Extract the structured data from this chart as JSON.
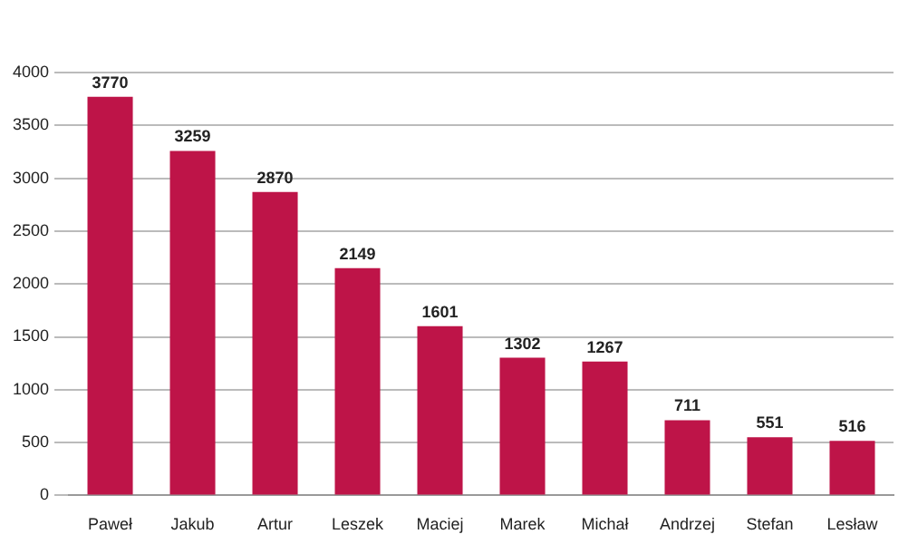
{
  "chart_data": {
    "type": "bar",
    "categories": [
      "Paweł",
      "Jakub",
      "Artur",
      "Leszek",
      "Maciej",
      "Marek",
      "Michał",
      "Andrzej",
      "Stefan",
      "Lesław"
    ],
    "values": [
      3770,
      3259,
      2870,
      2149,
      1601,
      1302,
      1267,
      711,
      551,
      516
    ],
    "color": "#be1448",
    "ylim": [
      0,
      4000
    ],
    "yticks": [
      0,
      500,
      1000,
      1500,
      2000,
      2500,
      3000,
      3500,
      4000
    ],
    "grid": "y",
    "data_labels": true
  }
}
